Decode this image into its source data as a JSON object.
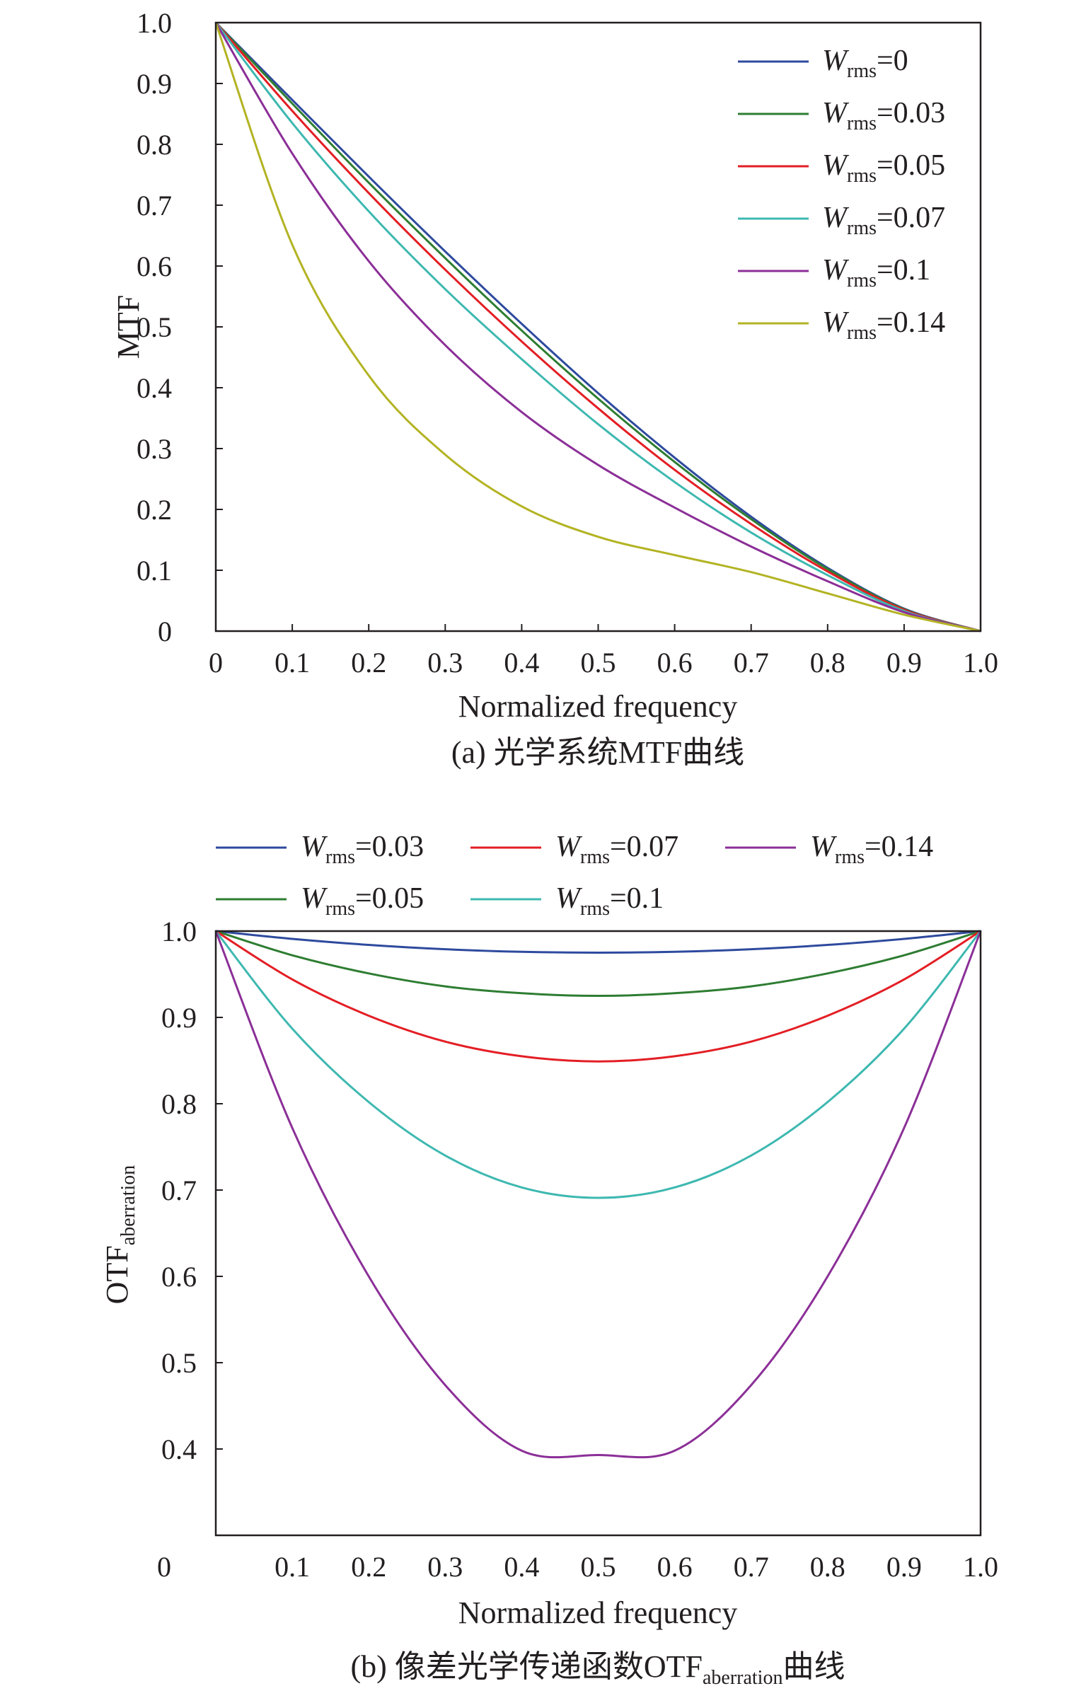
{
  "chart_data": [
    {
      "type": "line",
      "ylabel": "MTF",
      "xlabel": "Normalized frequency",
      "caption": "(a) 光学系统MTF曲线",
      "xlim": [
        0,
        1
      ],
      "ylim": [
        0,
        1
      ],
      "x_ticks": [
        "0",
        "0.1",
        "0.2",
        "0.3",
        "0.4",
        "0.5",
        "0.6",
        "0.7",
        "0.8",
        "0.9",
        "1.0"
      ],
      "y_ticks": [
        "0",
        "0.1",
        "0.2",
        "0.3",
        "0.4",
        "0.5",
        "0.6",
        "0.7",
        "0.8",
        "0.9",
        "1.0"
      ],
      "legend_position": "top-right",
      "x": [
        0,
        0.1,
        0.2,
        0.3,
        0.4,
        0.5,
        0.6,
        0.7,
        0.8,
        0.9,
        1.0
      ],
      "series": [
        {
          "name": "W_rms=0",
          "legend": {
            "w": "W",
            "sub": "rms",
            "val": "=0"
          },
          "color": "#2e4a9e",
          "values": [
            1.0,
            0.873,
            0.747,
            0.624,
            0.505,
            0.391,
            0.285,
            0.188,
            0.104,
            0.037,
            0.0
          ]
        },
        {
          "name": "W_rms=0.03",
          "legend": {
            "w": "W",
            "sub": "rms",
            "val": "=0.03"
          },
          "color": "#2e7d32",
          "values": [
            1.0,
            0.867,
            0.737,
            0.613,
            0.494,
            0.382,
            0.278,
            0.184,
            0.102,
            0.036,
            0.0
          ]
        },
        {
          "name": "W_rms=0.05",
          "legend": {
            "w": "W",
            "sub": "rms",
            "val": "=0.05"
          },
          "color": "#e31e24",
          "values": [
            1.0,
            0.855,
            0.72,
            0.594,
            0.476,
            0.366,
            0.265,
            0.176,
            0.098,
            0.035,
            0.0
          ]
        },
        {
          "name": "W_rms=0.07",
          "legend": {
            "w": "W",
            "sub": "rms",
            "val": "=0.07"
          },
          "color": "#3db8b0",
          "values": [
            1.0,
            0.835,
            0.69,
            0.562,
            0.447,
            0.34,
            0.245,
            0.162,
            0.092,
            0.033,
            0.0
          ]
        },
        {
          "name": "W_rms=0.1",
          "legend": {
            "w": "W",
            "sub": "rms",
            "val": "=0.1"
          },
          "color": "#8b2f97",
          "values": [
            1.0,
            0.785,
            0.608,
            0.47,
            0.36,
            0.273,
            0.203,
            0.139,
            0.082,
            0.031,
            0.0
          ]
        },
        {
          "name": "W_rms=0.14",
          "legend": {
            "w": "W",
            "sub": "rms",
            "val": "=0.14"
          },
          "color": "#b3b324",
          "values": [
            1.0,
            0.635,
            0.42,
            0.29,
            0.205,
            0.155,
            0.125,
            0.097,
            0.062,
            0.027,
            0.0
          ]
        }
      ]
    },
    {
      "type": "line",
      "ylabel": "OTF",
      "ylabel_sub": "aberration",
      "xlabel": "Normalized frequency",
      "caption_prefix": "(b) 像差光学传递函数OTF",
      "caption_sub": "aberration",
      "caption_suffix": "曲线",
      "xlim": [
        0,
        1
      ],
      "ylim": [
        0.3,
        1.0
      ],
      "x_ticks": [
        "0.1",
        "0.2",
        "0.3",
        "0.4",
        "0.5",
        "0.6",
        "0.7",
        "0.8",
        "0.9",
        "1.0"
      ],
      "x_origin_label": "0",
      "y_ticks": [
        "0.4",
        "0.5",
        "0.6",
        "0.7",
        "0.8",
        "0.9",
        "1.0"
      ],
      "legend_position": "top",
      "x": [
        0,
        0.1,
        0.2,
        0.3,
        0.4,
        0.5,
        0.6,
        0.7,
        0.8,
        0.9,
        1.0
      ],
      "series": [
        {
          "name": "W_rms=0.03",
          "legend": {
            "w": "W",
            "sub": "rms",
            "val": "=0.03"
          },
          "color": "#2e4a9e",
          "values": [
            1.0,
            0.991,
            0.984,
            0.979,
            0.976,
            0.975,
            0.976,
            0.979,
            0.984,
            0.991,
            1.0
          ]
        },
        {
          "name": "W_rms=0.05",
          "legend": {
            "w": "W",
            "sub": "rms",
            "val": "=0.05"
          },
          "color": "#2e7d32",
          "values": [
            1.0,
            0.972,
            0.951,
            0.936,
            0.928,
            0.925,
            0.928,
            0.936,
            0.951,
            0.972,
            1.0
          ]
        },
        {
          "name": "W_rms=0.07",
          "legend": {
            "w": "W",
            "sub": "rms",
            "val": "=0.07"
          },
          "color": "#e31e24",
          "values": [
            1.0,
            0.944,
            0.902,
            0.872,
            0.855,
            0.849,
            0.855,
            0.872,
            0.902,
            0.944,
            1.0
          ]
        },
        {
          "name": "W_rms=0.1",
          "legend": {
            "w": "W",
            "sub": "rms",
            "val": "=0.1"
          },
          "color": "#3db8b0",
          "values": [
            1.0,
            0.887,
            0.802,
            0.74,
            0.703,
            0.691,
            0.703,
            0.74,
            0.802,
            0.887,
            1.0
          ]
        },
        {
          "name": "W_rms=0.14",
          "legend": {
            "w": "W",
            "sub": "rms",
            "val": "=0.14"
          },
          "color": "#8b2f97",
          "values": [
            1.0,
            0.772,
            0.6,
            0.474,
            0.398,
            0.393,
            0.398,
            0.474,
            0.6,
            0.772,
            1.0
          ]
        }
      ]
    }
  ]
}
